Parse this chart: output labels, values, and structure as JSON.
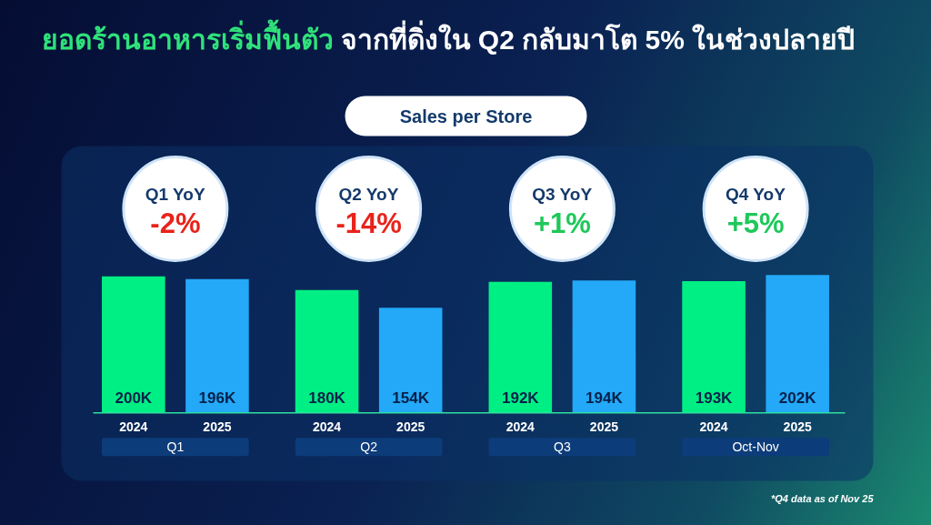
{
  "chart_data": {
    "type": "bar",
    "title": "ยอดร้านอาหารเริ่มฟื้นตัว จากที่ดิ่งใน Q2 กลับมาโต 5% ในช่วงปลายปี",
    "subtitle": "Sales per Store",
    "categories": [
      "Q1",
      "Q2",
      "Q3",
      "Oct-Nov"
    ],
    "series": [
      {
        "name": "2024",
        "color": "#00ef84",
        "values": [
          200,
          180,
          192,
          193
        ],
        "value_labels": [
          "200K",
          "180K",
          "192K",
          "193K"
        ]
      },
      {
        "name": "2025",
        "color": "#23a9f7",
        "values": [
          196,
          154,
          194,
          202
        ],
        "value_labels": [
          "196K",
          "154K",
          "194K",
          "202K"
        ]
      }
    ],
    "annotations": [
      "Q1 YoY\n-2%",
      "Q2 YoY\n-14%",
      "Q3 YoY\n+1%",
      "Q4 YoY\n+5%",
      "*Q4 data as of Nov 25"
    ]
  }
}
